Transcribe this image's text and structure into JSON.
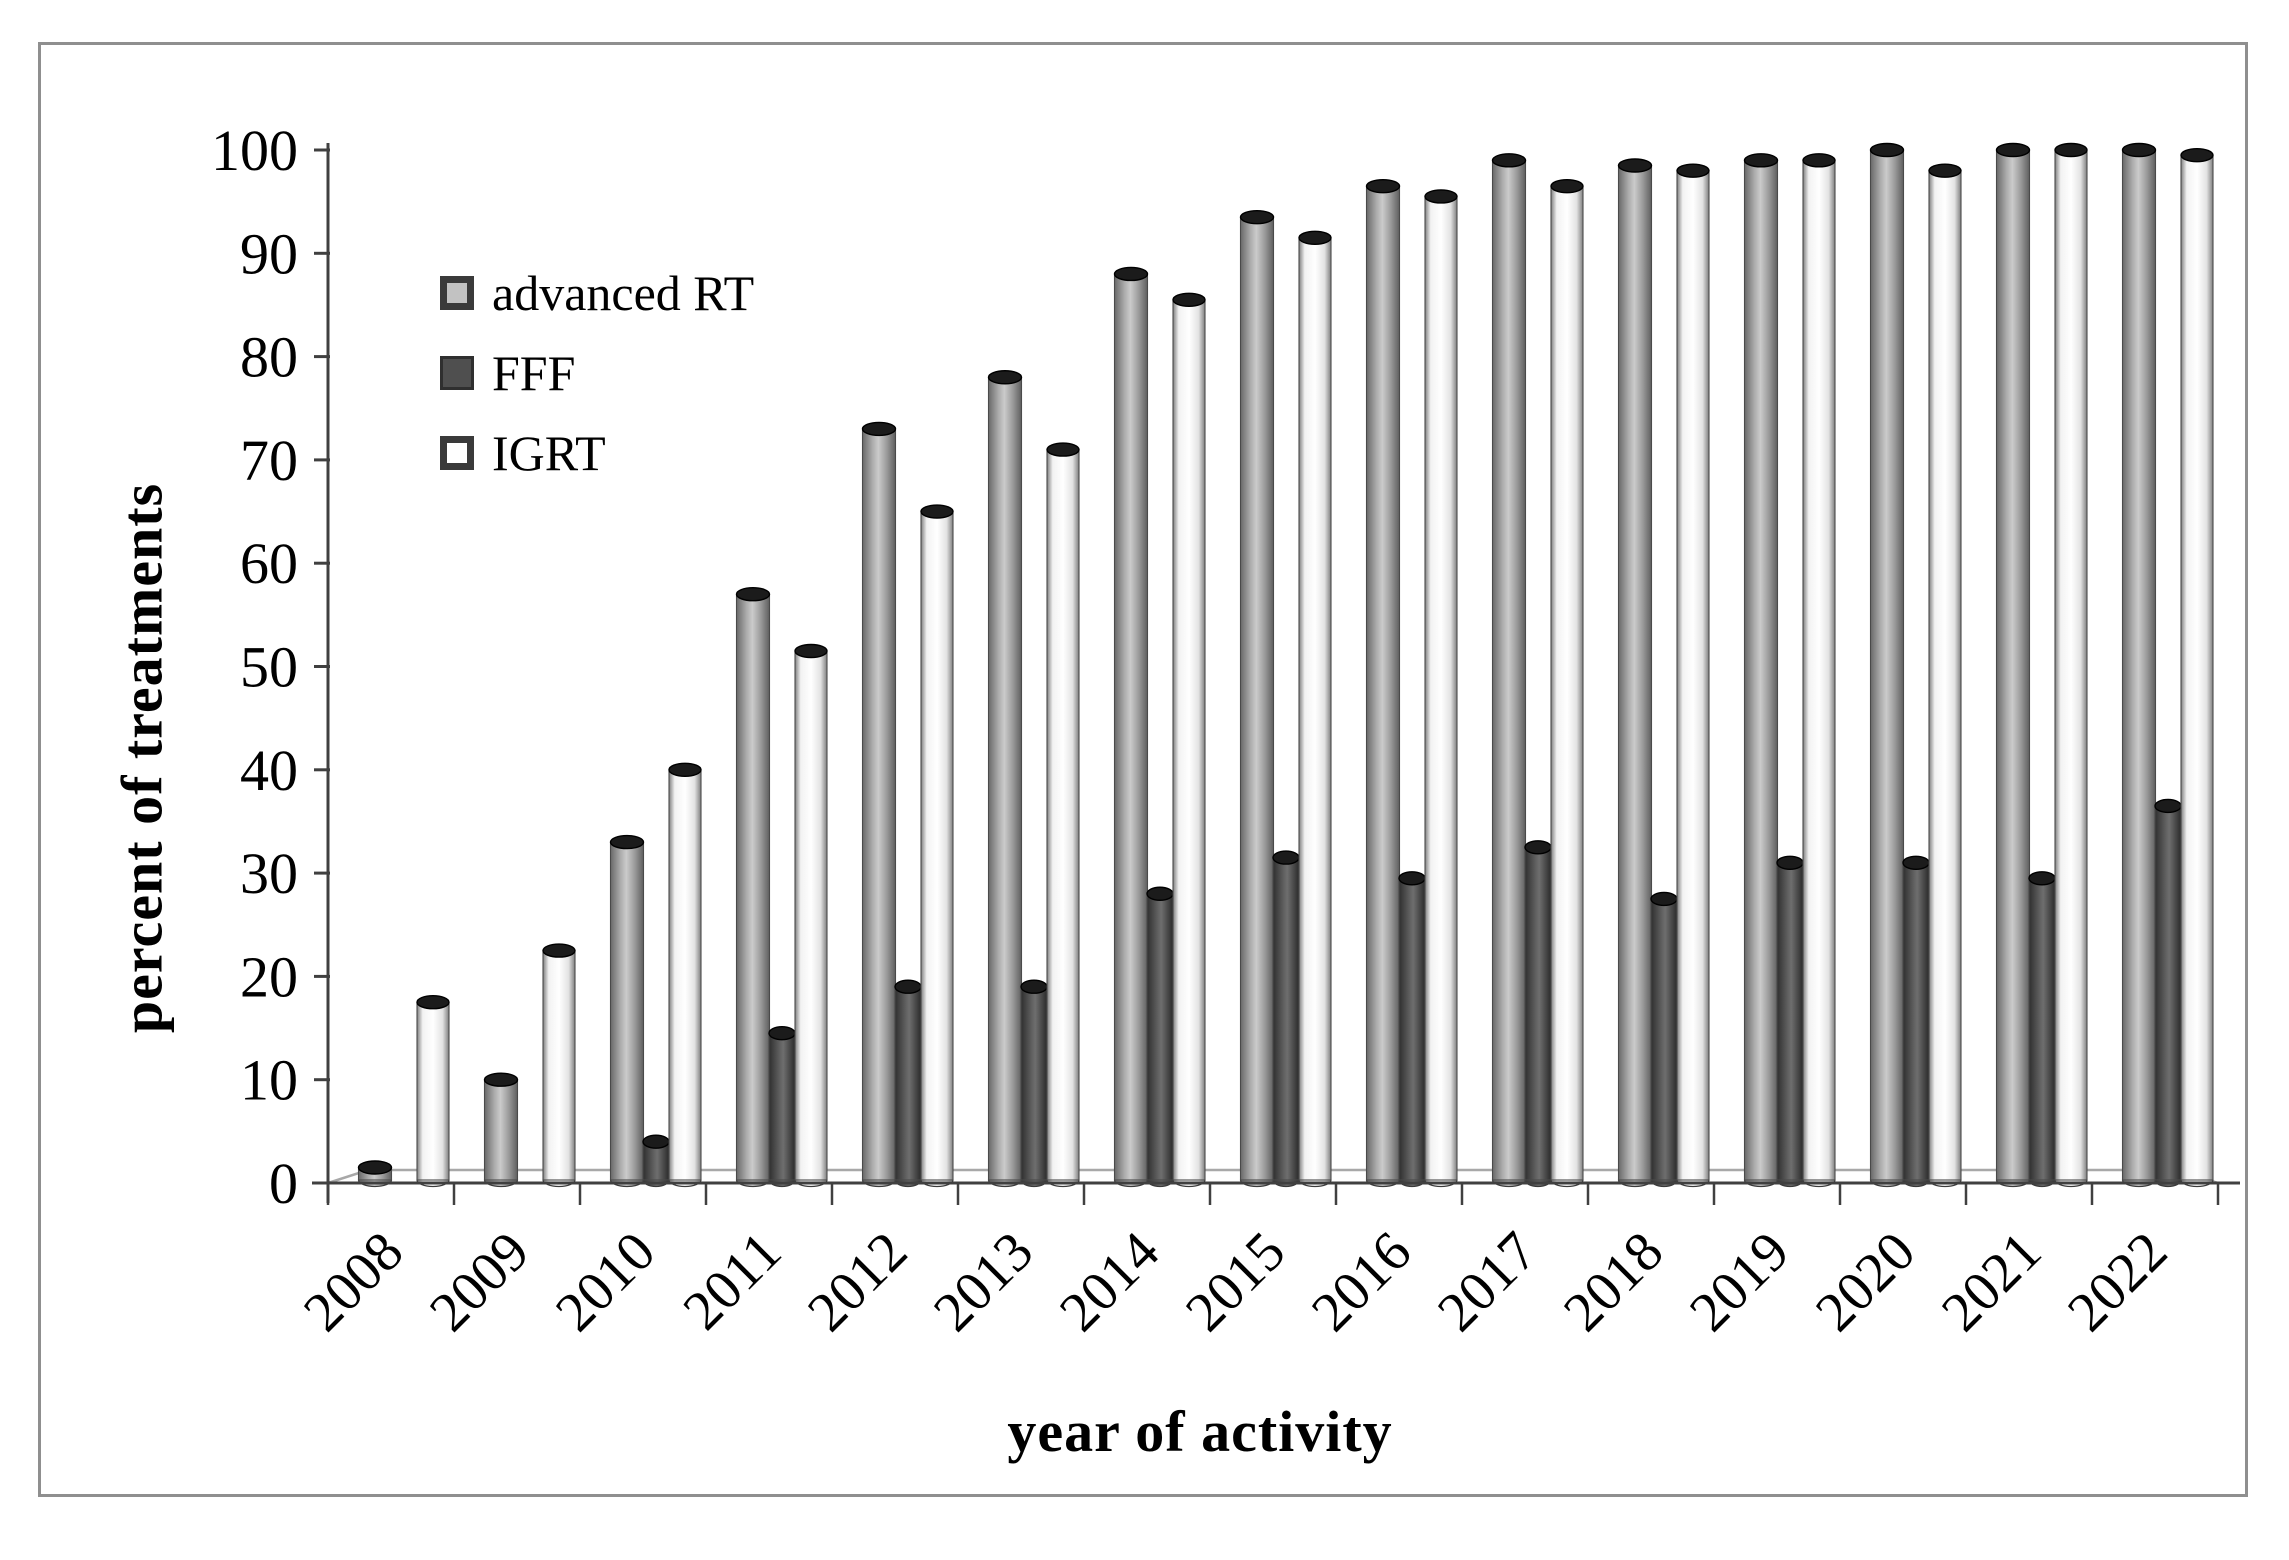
{
  "figure": {
    "y_axis_title": "percent of treatments",
    "x_axis_title": "year of activity"
  },
  "legend": {
    "items": [
      {
        "label": "advanced RT",
        "swatch": "advanced-rt"
      },
      {
        "label": "FFF",
        "swatch": "fff"
      },
      {
        "label": "IGRT",
        "swatch": "igrt"
      }
    ]
  },
  "chart_data": {
    "type": "bar",
    "subtype": "3d-cylinder",
    "title": "",
    "xlabel": "year of activity",
    "ylabel": "percent of treatments",
    "categories": [
      "2008",
      "2009",
      "2010",
      "2011",
      "2012",
      "2013",
      "2014",
      "2015",
      "2016",
      "2017",
      "2018",
      "2019",
      "2020",
      "2021",
      "2022"
    ],
    "series": [
      {
        "name": "advanced RT",
        "key": "art",
        "values": [
          1.5,
          10,
          33,
          57,
          73,
          78,
          88,
          93.5,
          96.5,
          99,
          98.5,
          99,
          100,
          100,
          100
        ]
      },
      {
        "name": "FFF",
        "key": "fff",
        "values": [
          0,
          0,
          4,
          14.5,
          19,
          19,
          28,
          31.5,
          29.5,
          32.5,
          27.5,
          31,
          31,
          29.5,
          36.5
        ]
      },
      {
        "name": "IGRT",
        "key": "igrt",
        "values": [
          17.5,
          22.5,
          40,
          51.5,
          65,
          71,
          85.5,
          91.5,
          95.5,
          96.5,
          98,
          99,
          98,
          100,
          99.5
        ]
      }
    ],
    "ylim": [
      0,
      100
    ],
    "yticks": [
      0,
      10,
      20,
      30,
      40,
      50,
      60,
      70,
      80,
      90,
      100
    ],
    "grid": false,
    "legend_position": "upper-left-inside",
    "x_tick_rotation": -45,
    "colors": {
      "advanced_rt_fill": "#ababab",
      "fff_fill": "#4f4f4f",
      "igrt_fill": "#ffffff",
      "cylinder_cap": "#1b1b1b",
      "axis": "#404040",
      "floor_line": "#a8a8a8",
      "frame_border": "#8f8f8f",
      "text": "#000000"
    }
  }
}
